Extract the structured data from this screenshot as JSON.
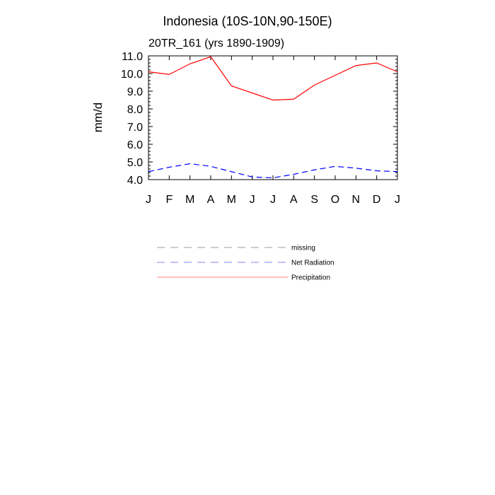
{
  "chart_data": {
    "type": "line",
    "title": "Indonesia (10S-10N,90-150E)",
    "subtitle": "20TR_161 (yrs 1890-1909)",
    "xlabel": "",
    "ylabel": "mm/d",
    "categories": [
      "J",
      "F",
      "M",
      "A",
      "M",
      "J",
      "J",
      "A",
      "S",
      "O",
      "N",
      "D",
      "J"
    ],
    "ylim": [
      4.0,
      11.0
    ],
    "yticks": [
      "4.0",
      "5.0",
      "6.0",
      "7.0",
      "8.0",
      "9.0",
      "10.0",
      "11.0"
    ],
    "series": [
      {
        "name": "Precipitation",
        "color": "#ff0000",
        "dash": "solid",
        "values": [
          10.1,
          9.95,
          10.55,
          10.95,
          9.3,
          8.9,
          8.5,
          8.55,
          9.35,
          9.9,
          10.45,
          10.6,
          10.1
        ]
      },
      {
        "name": "Net Radiation",
        "color": "#0000ff",
        "dash": "dashed",
        "values": [
          4.45,
          4.7,
          4.9,
          4.75,
          4.45,
          4.15,
          4.1,
          4.3,
          4.55,
          4.75,
          4.65,
          4.5,
          4.45
        ]
      }
    ],
    "legend": [
      {
        "label": "missing",
        "color": "#999999",
        "dash": "dashed"
      },
      {
        "label": "Net Radiation",
        "color": "#8080ff",
        "dash": "dashed"
      },
      {
        "label": "Precipitation",
        "color": "#ff8080",
        "dash": "solid"
      }
    ],
    "legend_position": "below"
  }
}
